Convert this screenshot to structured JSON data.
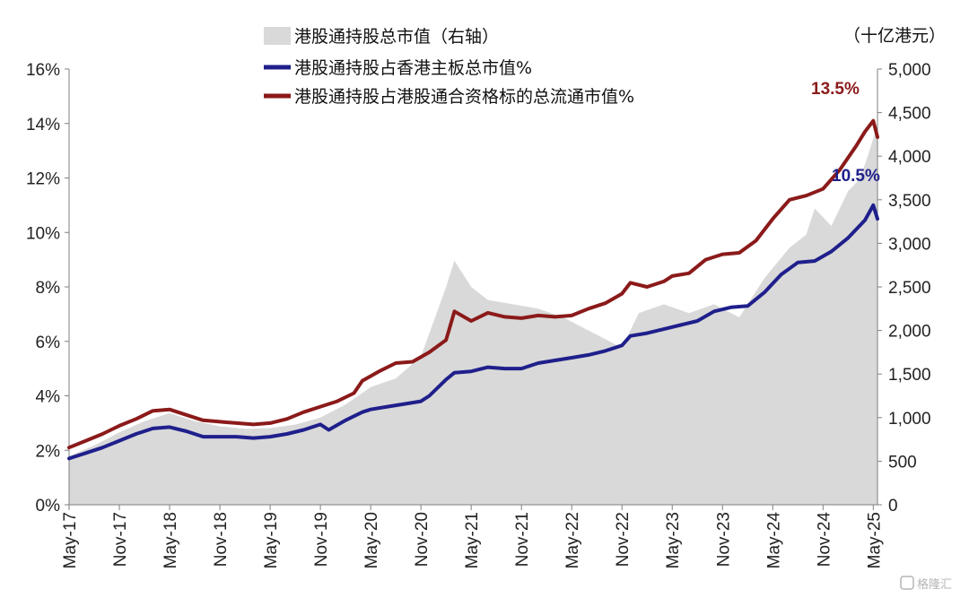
{
  "chart_data": {
    "type": "line",
    "y_left_ticks": [
      "0%",
      "2%",
      "4%",
      "6%",
      "8%",
      "10%",
      "12%",
      "14%",
      "16%"
    ],
    "y_right_ticks": [
      "0",
      "500",
      "1,000",
      "1,500",
      "2,000",
      "2,500",
      "3,000",
      "3,500",
      "4,000",
      "4,500",
      "5,000"
    ],
    "y_left_range": [
      0,
      16
    ],
    "y_right_range": [
      0,
      5000
    ],
    "right_unit": "（十亿港元）",
    "x_tick_labels": [
      "May-17",
      "Nov-17",
      "May-18",
      "Nov-18",
      "May-19",
      "Nov-19",
      "May-20",
      "Nov-20",
      "May-21",
      "Nov-21",
      "May-22",
      "Nov-22",
      "May-23",
      "Nov-23",
      "May-24",
      "Nov-24",
      "May-25"
    ],
    "x_ticks_time": [
      0,
      6,
      12,
      18,
      24,
      30,
      36,
      42,
      48,
      54,
      60,
      66,
      72,
      78,
      84,
      90,
      96
    ],
    "series": [
      {
        "name": "港股通持股总市值（右轴）",
        "type": "area",
        "axis": "right",
        "color": "#d9d9d9",
        "points": [
          [
            0,
            560
          ],
          [
            3,
            680
          ],
          [
            6,
            830
          ],
          [
            9,
            960
          ],
          [
            12,
            1050
          ],
          [
            15,
            960
          ],
          [
            18,
            900
          ],
          [
            21,
            870
          ],
          [
            24,
            880
          ],
          [
            27,
            920
          ],
          [
            30,
            1000
          ],
          [
            33,
            1150
          ],
          [
            36,
            1350
          ],
          [
            39,
            1450
          ],
          [
            42,
            1700
          ],
          [
            45,
            2500
          ],
          [
            46,
            2800
          ],
          [
            48,
            2500
          ],
          [
            50,
            2350
          ],
          [
            53,
            2300
          ],
          [
            56,
            2250
          ],
          [
            59,
            2150
          ],
          [
            62,
            2000
          ],
          [
            64,
            1900
          ],
          [
            66,
            1800
          ],
          [
            68,
            2200
          ],
          [
            71,
            2300
          ],
          [
            74,
            2200
          ],
          [
            77,
            2300
          ],
          [
            80,
            2150
          ],
          [
            83,
            2600
          ],
          [
            86,
            2950
          ],
          [
            88,
            3100
          ],
          [
            89,
            3400
          ],
          [
            91,
            3200
          ],
          [
            93,
            3600
          ],
          [
            94,
            3700
          ],
          [
            95,
            3900
          ],
          [
            96,
            4200
          ],
          [
            96.5,
            4350
          ],
          [
            96.5,
            0
          ]
        ]
      },
      {
        "name": "港股通持股占香港主板总市值%",
        "type": "line",
        "axis": "left",
        "color": "#1f1f8c",
        "points": [
          [
            0,
            1.7
          ],
          [
            2,
            1.9
          ],
          [
            4,
            2.1
          ],
          [
            6,
            2.35
          ],
          [
            8,
            2.6
          ],
          [
            10,
            2.8
          ],
          [
            12,
            2.85
          ],
          [
            14,
            2.7
          ],
          [
            16,
            2.5
          ],
          [
            18,
            2.5
          ],
          [
            20,
            2.5
          ],
          [
            22,
            2.45
          ],
          [
            24,
            2.5
          ],
          [
            26,
            2.6
          ],
          [
            28,
            2.75
          ],
          [
            30,
            2.95
          ],
          [
            31,
            2.75
          ],
          [
            33,
            3.1
          ],
          [
            35,
            3.4
          ],
          [
            36,
            3.5
          ],
          [
            38,
            3.6
          ],
          [
            40,
            3.7
          ],
          [
            42,
            3.8
          ],
          [
            43,
            4.0
          ],
          [
            45,
            4.6
          ],
          [
            46,
            4.85
          ],
          [
            48,
            4.9
          ],
          [
            50,
            5.05
          ],
          [
            52,
            5.0
          ],
          [
            54,
            5.0
          ],
          [
            56,
            5.2
          ],
          [
            58,
            5.3
          ],
          [
            60,
            5.4
          ],
          [
            62,
            5.5
          ],
          [
            64,
            5.65
          ],
          [
            66,
            5.85
          ],
          [
            67,
            6.2
          ],
          [
            69,
            6.3
          ],
          [
            71,
            6.45
          ],
          [
            73,
            6.6
          ],
          [
            75,
            6.75
          ],
          [
            77,
            7.1
          ],
          [
            79,
            7.25
          ],
          [
            81,
            7.3
          ],
          [
            83,
            7.8
          ],
          [
            85,
            8.45
          ],
          [
            87,
            8.9
          ],
          [
            89,
            8.95
          ],
          [
            91,
            9.3
          ],
          [
            93,
            9.8
          ],
          [
            95,
            10.45
          ],
          [
            96,
            11.0
          ],
          [
            96.5,
            10.5
          ]
        ]
      },
      {
        "name": "港股通持股占港股通合资格标的总流通市值%",
        "type": "line",
        "axis": "left",
        "color": "#8b1a1a",
        "points": [
          [
            0,
            2.1
          ],
          [
            2,
            2.35
          ],
          [
            4,
            2.6
          ],
          [
            6,
            2.9
          ],
          [
            8,
            3.15
          ],
          [
            10,
            3.45
          ],
          [
            12,
            3.5
          ],
          [
            14,
            3.3
          ],
          [
            16,
            3.1
          ],
          [
            18,
            3.05
          ],
          [
            20,
            3.0
          ],
          [
            22,
            2.95
          ],
          [
            24,
            3.0
          ],
          [
            26,
            3.15
          ],
          [
            28,
            3.4
          ],
          [
            30,
            3.6
          ],
          [
            32,
            3.8
          ],
          [
            34,
            4.1
          ],
          [
            35,
            4.55
          ],
          [
            37,
            4.9
          ],
          [
            39,
            5.2
          ],
          [
            41,
            5.25
          ],
          [
            43,
            5.6
          ],
          [
            45,
            6.05
          ],
          [
            46,
            7.1
          ],
          [
            48,
            6.75
          ],
          [
            50,
            7.05
          ],
          [
            52,
            6.9
          ],
          [
            54,
            6.85
          ],
          [
            56,
            6.95
          ],
          [
            58,
            6.9
          ],
          [
            60,
            6.95
          ],
          [
            62,
            7.2
          ],
          [
            64,
            7.4
          ],
          [
            66,
            7.75
          ],
          [
            67,
            8.15
          ],
          [
            69,
            8.0
          ],
          [
            71,
            8.2
          ],
          [
            72,
            8.4
          ],
          [
            74,
            8.5
          ],
          [
            76,
            9.0
          ],
          [
            78,
            9.2
          ],
          [
            80,
            9.25
          ],
          [
            82,
            9.7
          ],
          [
            84,
            10.5
          ],
          [
            86,
            11.2
          ],
          [
            88,
            11.35
          ],
          [
            90,
            11.6
          ],
          [
            92,
            12.3
          ],
          [
            94,
            13.2
          ],
          [
            95,
            13.7
          ],
          [
            96,
            14.1
          ],
          [
            96.5,
            13.5
          ]
        ]
      }
    ],
    "annotations": [
      {
        "text": "13.5%",
        "color": "#8b1a1a"
      },
      {
        "text": "10.5%",
        "color": "#1f1f8c"
      }
    ]
  },
  "watermark": "格隆汇"
}
